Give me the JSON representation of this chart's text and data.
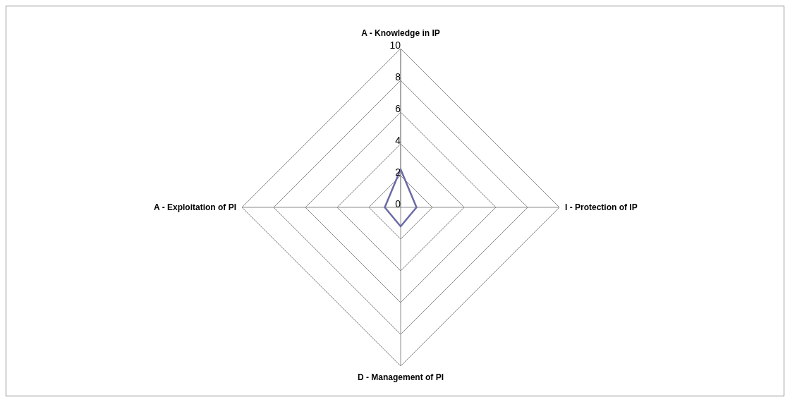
{
  "chart_data": {
    "type": "radar",
    "categories": [
      "A - Knowledge in IP",
      "I - Protection of IP",
      "D - Management of PI",
      "A - Exploitation of PI"
    ],
    "series": [
      {
        "color": "#6a6aa6",
        "values": [
          2.4,
          1,
          1.2,
          1
        ]
      }
    ],
    "ylim": [
      0,
      10
    ],
    "yticks": [
      0,
      2,
      4,
      6,
      8,
      10
    ],
    "grid": true,
    "marker": "none"
  }
}
